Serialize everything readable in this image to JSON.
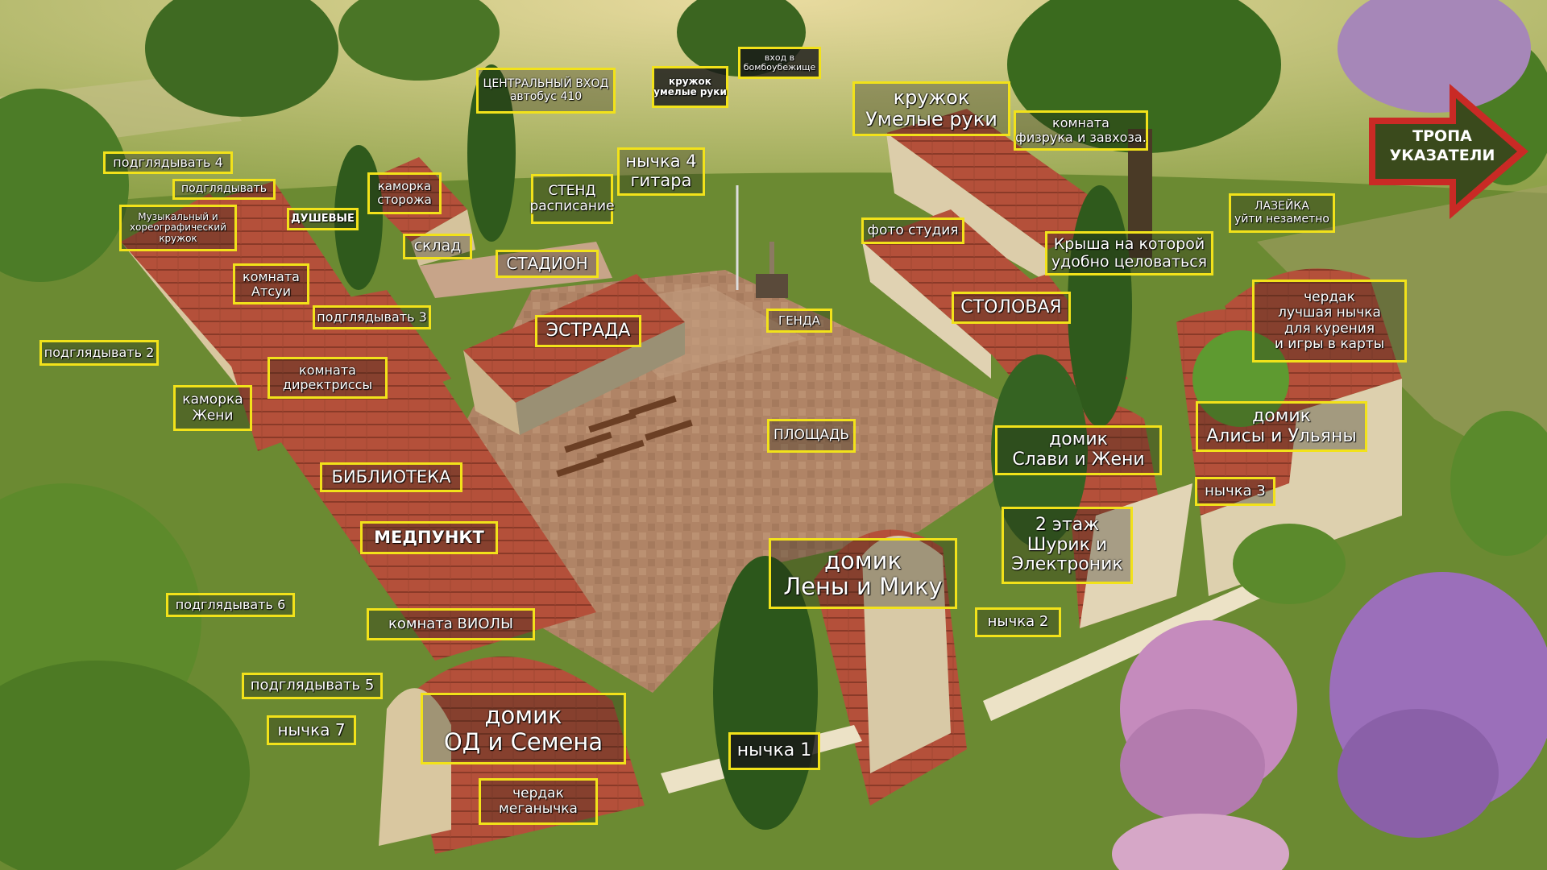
{
  "labels": {
    "podglyadyvat4": "подглядывать 4",
    "podglyadyvat": "подглядывать",
    "muz_l1": "Музыкальный и",
    "muz_l2": "хореографический",
    "muz_l3": "кружок",
    "dushevye": "ДУШЕВЫЕ",
    "kamorka_storozha_l1": "каморка",
    "kamorka_storozha_l2": "сторожа",
    "sklad": "склад",
    "central_l1": "ЦЕНТРАЛЬНЫЙ ВХОД",
    "central_l2": "автобус 410",
    "kruzhok_small_l1": "кружок",
    "kruzhok_small_l2": "умелые руки",
    "vhod_l1": "вход в",
    "vhod_l2": "бомбоубежище",
    "nychka4_l1": "нычка 4",
    "nychka4_l2": "гитара",
    "stend_l1": "СТЕНД",
    "stend_l2": "расписание",
    "stadion": "СТАДИОН",
    "kruzhok_big_l1": "кружок",
    "kruzhok_big_l2": "Умелые руки",
    "fizruk_l1": "комната",
    "fizruk_l2": "физрука и завхоза.",
    "foto": "фото студия",
    "krysha_l1": "Крыша на которой",
    "krysha_l2": "удобно целоваться",
    "lazeyka_l1": "ЛАЗЕЙКА",
    "lazeyka_l2": "уйти незаметно",
    "komnata_atsui_l1": "комната",
    "komnata_atsui_l2": "Атсуи",
    "podglyadyvat3": "подглядывать 3",
    "estrada": "ЭСТРАДА",
    "genda": "ГЕНДА",
    "stolovaya": "СТОЛОВАЯ",
    "cherdak_top_l1": "чердак",
    "cherdak_top_l2": "лучшая нычка",
    "cherdak_top_l3": "для курения",
    "cherdak_top_l4": "и игры в карты",
    "podglyadyvat2": "подглядывать 2",
    "direktrisa_l1": "комната",
    "direktrisa_l2": "директриссы",
    "kamorka_zheni_l1": "каморка",
    "kamorka_zheni_l2": "Жени",
    "ploshchad": "ПЛОЩАДЬ",
    "slavi_l1": "домик",
    "slavi_l2": "Слави и Жени",
    "alisy_l1": "домик",
    "alisy_l2": "Алисы и Ульяны",
    "biblioteka": "БИБЛИОТЕКА",
    "nychka3": "нычка 3",
    "medpunkt": "МЕДПУНКТ",
    "etazh2_l1": "2 этаж",
    "etazh2_l2": "Шурик и",
    "etazh2_l3": "Электроник",
    "leny_l1": "домик",
    "leny_l2": "Лены и Мику",
    "podglyadyvat6": "подглядывать 6",
    "viola": "комната ВИОЛЫ",
    "nychka2": "нычка 2",
    "podglyadyvat5": "подглядывать 5",
    "od_l1": "домик",
    "od_l2": "ОД и Семена",
    "nychka7": "нычка 7",
    "nychka1": "нычка 1",
    "cherdak_bottom_l1": "чердак",
    "cherdak_bottom_l2": "меганычка"
  },
  "trail_sign": {
    "line1": "ТРОПА",
    "line2": "УКАЗАТЕЛИ"
  },
  "colors": {
    "label_border": "#f2e21a",
    "label_text": "#ffffff",
    "roof": "#b4503a",
    "grass": "#6b8a32",
    "plaza": "#b08466",
    "sign_red": "#c92a25",
    "sign_green": "#3a4a1c"
  }
}
